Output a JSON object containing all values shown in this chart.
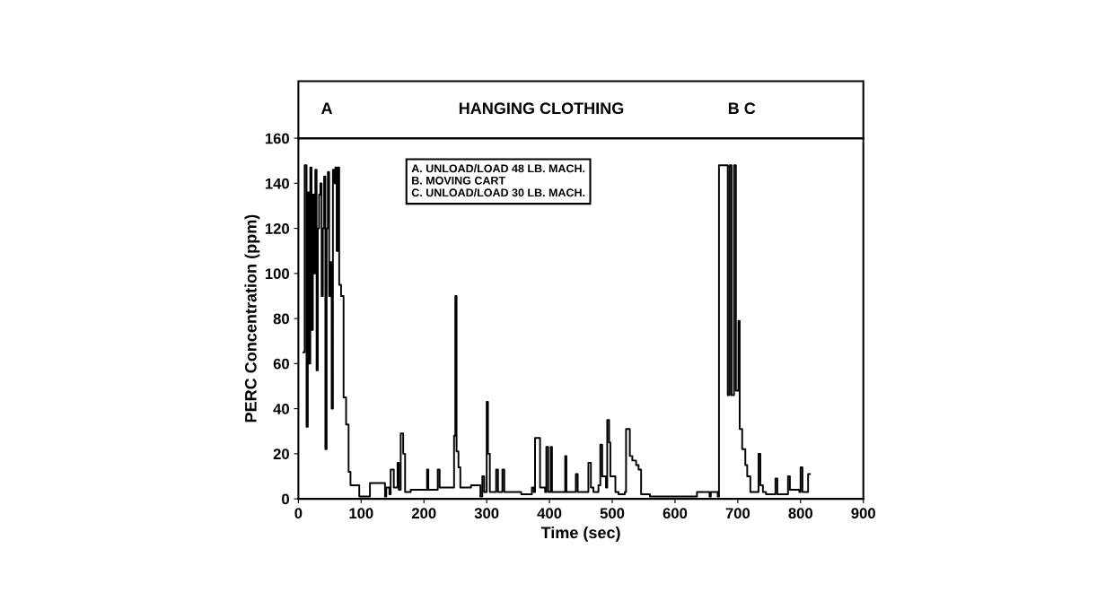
{
  "chart_data": {
    "type": "step",
    "title": "HANGING CLOTHING",
    "xlabel": "Time (sec)",
    "ylabel": "PERC Concentration (ppm)",
    "xlim": [
      0,
      900
    ],
    "xticks": [
      0,
      100,
      200,
      300,
      400,
      500,
      600,
      700,
      800,
      900
    ],
    "ylim": [
      0,
      160
    ],
    "yticks": [
      0,
      20,
      40,
      60,
      80,
      100,
      120,
      140,
      160
    ],
    "grid": false,
    "legend": false,
    "marker": "none",
    "line_style": "solid",
    "annotations": [
      "A",
      "B C",
      "A. UNLOAD/LOAD 48 LB. MACH.\nB. MOVING CART\nC. UNLOAD/LOAD 30 LB. MACH."
    ],
    "series": [
      {
        "color": "#000000",
        "x": [
          8,
          10,
          13,
          15,
          17,
          19,
          21,
          23,
          25,
          27,
          29,
          31,
          33,
          35,
          37,
          39,
          41,
          43,
          45,
          47,
          49,
          51,
          53,
          55,
          57,
          59,
          61,
          63,
          65,
          68,
          72,
          76,
          80,
          83,
          86,
          97,
          112,
          114,
          138,
          140,
          145,
          147,
          152,
          158,
          160,
          163,
          167,
          170,
          175,
          179,
          200,
          205,
          207,
          220,
          222,
          225,
          235,
          245,
          248,
          250,
          252,
          255,
          258,
          262,
          275,
          285,
          290,
          293,
          296,
          300,
          302,
          305,
          312,
          315,
          318,
          323,
          325,
          328,
          345,
          355,
          370,
          372,
          375,
          377,
          385,
          393,
          395,
          398,
          402,
          404,
          420,
          425,
          427,
          440,
          442,
          445,
          455,
          460,
          462,
          466,
          470,
          478,
          481,
          484,
          490,
          492,
          495,
          497,
          505,
          510,
          520,
          522,
          528,
          532,
          538,
          542,
          546,
          560,
          633,
          635,
          655,
          657,
          668,
          670,
          680,
          684,
          687,
          690,
          694,
          697,
          701,
          703,
          707,
          712,
          715,
          720,
          730,
          733,
          736,
          740,
          745,
          758,
          760,
          763,
          778,
          780,
          783,
          798,
          800,
          803,
          812,
          815
        ],
        "values": [
          65,
          148,
          32,
          136,
          60,
          147,
          75,
          135,
          100,
          146,
          57,
          120,
          135,
          140,
          90,
          120,
          143,
          22,
          120,
          145,
          90,
          105,
          40,
          146,
          140,
          147,
          110,
          147,
          95,
          90,
          45,
          33,
          12,
          6,
          6,
          1,
          1,
          7,
          1,
          5,
          2,
          13,
          5,
          16,
          4,
          29,
          20,
          3,
          3,
          4,
          4,
          13,
          4,
          4,
          13,
          5,
          5,
          5,
          28,
          90,
          21,
          14,
          5,
          5,
          6,
          6,
          1,
          10,
          3,
          43,
          20,
          3,
          3,
          13,
          3,
          3,
          13,
          3,
          3,
          2,
          2,
          5,
          3,
          27,
          5,
          3,
          23,
          3,
          23,
          3,
          3,
          19,
          3,
          3,
          11,
          3,
          3,
          3,
          16,
          5,
          3,
          6,
          24,
          10,
          5,
          35,
          25,
          10,
          3,
          2,
          3,
          31,
          19,
          17,
          15,
          13,
          2,
          1,
          1,
          3,
          1,
          3,
          1,
          148,
          148,
          46,
          148,
          46,
          148,
          48,
          79,
          31,
          22,
          15,
          10,
          3,
          3,
          20,
          6,
          3,
          2,
          2,
          9,
          2,
          2,
          10,
          4,
          3,
          14,
          3,
          11,
          11
        ]
      }
    ]
  }
}
